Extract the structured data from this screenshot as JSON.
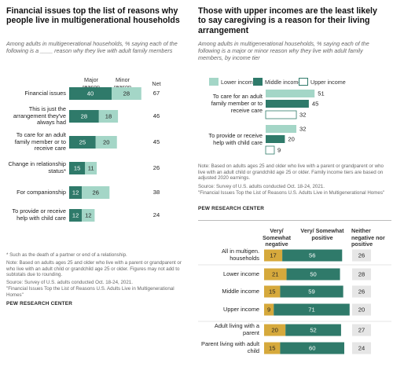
{
  "left": {
    "title": "Financial issues top the list of reasons why people live in multigenerational households",
    "subtitle": "Among adults in multigenerational households, % saying each of the following is a ____ reason why they live with adult family members",
    "headers": {
      "major": "Major reason",
      "minor": "Minor reason",
      "net": "Net"
    },
    "footnote": "* Such as the death of a partner or end of a relationship.",
    "note": "Note: Based on adults ages 25 and older who live with a parent or grandparent or who live with an adult child or grandchild age 25 or older. Figures may not add to subtotals due to rounding.",
    "source": "Source: Survey of U.S. adults conducted Oct. 18-24, 2021.",
    "report": "\"Financial Issues Top the List of Reasons U.S. Adults Live in Multigenerational Homes\"",
    "org": "PEW RESEARCH CENTER"
  },
  "right": {
    "title": "Those with upper incomes are the least likely to say caregiving is a reason for their living arrangement",
    "subtitle": "Among adults in multigenerational households, % saying each of the following is a major or minor reason why they live with adult family members, by income tier",
    "legend": [
      "Lower income",
      "Middle income",
      "Upper income"
    ],
    "note": "Note: Based on adults ages 25 and older who live with a parent or grandparent or who live with an adult child or grandchild age 25 or older. Family income tiers are based on adjusted 2020 earnings.",
    "source": "Source: Survey of U.S. adults conducted Oct. 18-24, 2021.",
    "report": "\"Financial Issues Top the List of Reasons U.S. Adults Live in Multigenerational Homes\"",
    "org": "PEW RESEARCH CENTER",
    "table_headers": {
      "negative": "Very/ Somewhat negative",
      "positive": "Very/ Somewhat positive",
      "neither": "Neither negative nor positive"
    }
  },
  "chart_data": [
    {
      "type": "bar",
      "stacked": true,
      "orientation": "horizontal",
      "categories": [
        "Financial issues",
        "This is just the arrangement they've always had",
        "To care for an adult family member or to receive care",
        "Change in relationship status*",
        "For companionship",
        "To provide or receive help with child care"
      ],
      "series": [
        {
          "name": "Major reason",
          "values": [
            40,
            28,
            25,
            15,
            12,
            12
          ]
        },
        {
          "name": "Minor reason",
          "values": [
            28,
            18,
            20,
            11,
            26,
            12
          ]
        }
      ],
      "net": [
        67,
        46,
        45,
        26,
        38,
        24
      ],
      "colors": {
        "Major reason": "#2f7a6a",
        "Minor reason": "#a4d6c7"
      }
    },
    {
      "type": "bar",
      "orientation": "horizontal",
      "categories": [
        "To care for an adult family member or to receive care",
        "To provide or receive help with child care"
      ],
      "series": [
        {
          "name": "Lower income",
          "values": [
            51,
            32
          ]
        },
        {
          "name": "Middle income",
          "values": [
            45,
            20
          ]
        },
        {
          "name": "Upper income",
          "values": [
            32,
            9
          ]
        }
      ],
      "colors": {
        "Lower income": "#a4d6c7",
        "Middle income": "#2f7a6a",
        "Upper income": "#ffffff"
      }
    },
    {
      "type": "bar",
      "stacked": true,
      "orientation": "horizontal",
      "categories": [
        "All in multigen. households",
        "Lower income",
        "Middle income",
        "Upper income",
        "Adult living with a parent",
        "Parent living with adult child"
      ],
      "series": [
        {
          "name": "Very/ Somewhat negative",
          "values": [
            17,
            21,
            15,
            9,
            20,
            15
          ]
        },
        {
          "name": "Very/ Somewhat positive",
          "values": [
            56,
            50,
            59,
            71,
            52,
            60
          ]
        }
      ],
      "neither": [
        26,
        28,
        26,
        20,
        27,
        24
      ],
      "colors": {
        "Very/ Somewhat negative": "#d6a93c",
        "Very/ Somewhat positive": "#2f7a6a",
        "neither": "#e6e6e6"
      }
    }
  ]
}
